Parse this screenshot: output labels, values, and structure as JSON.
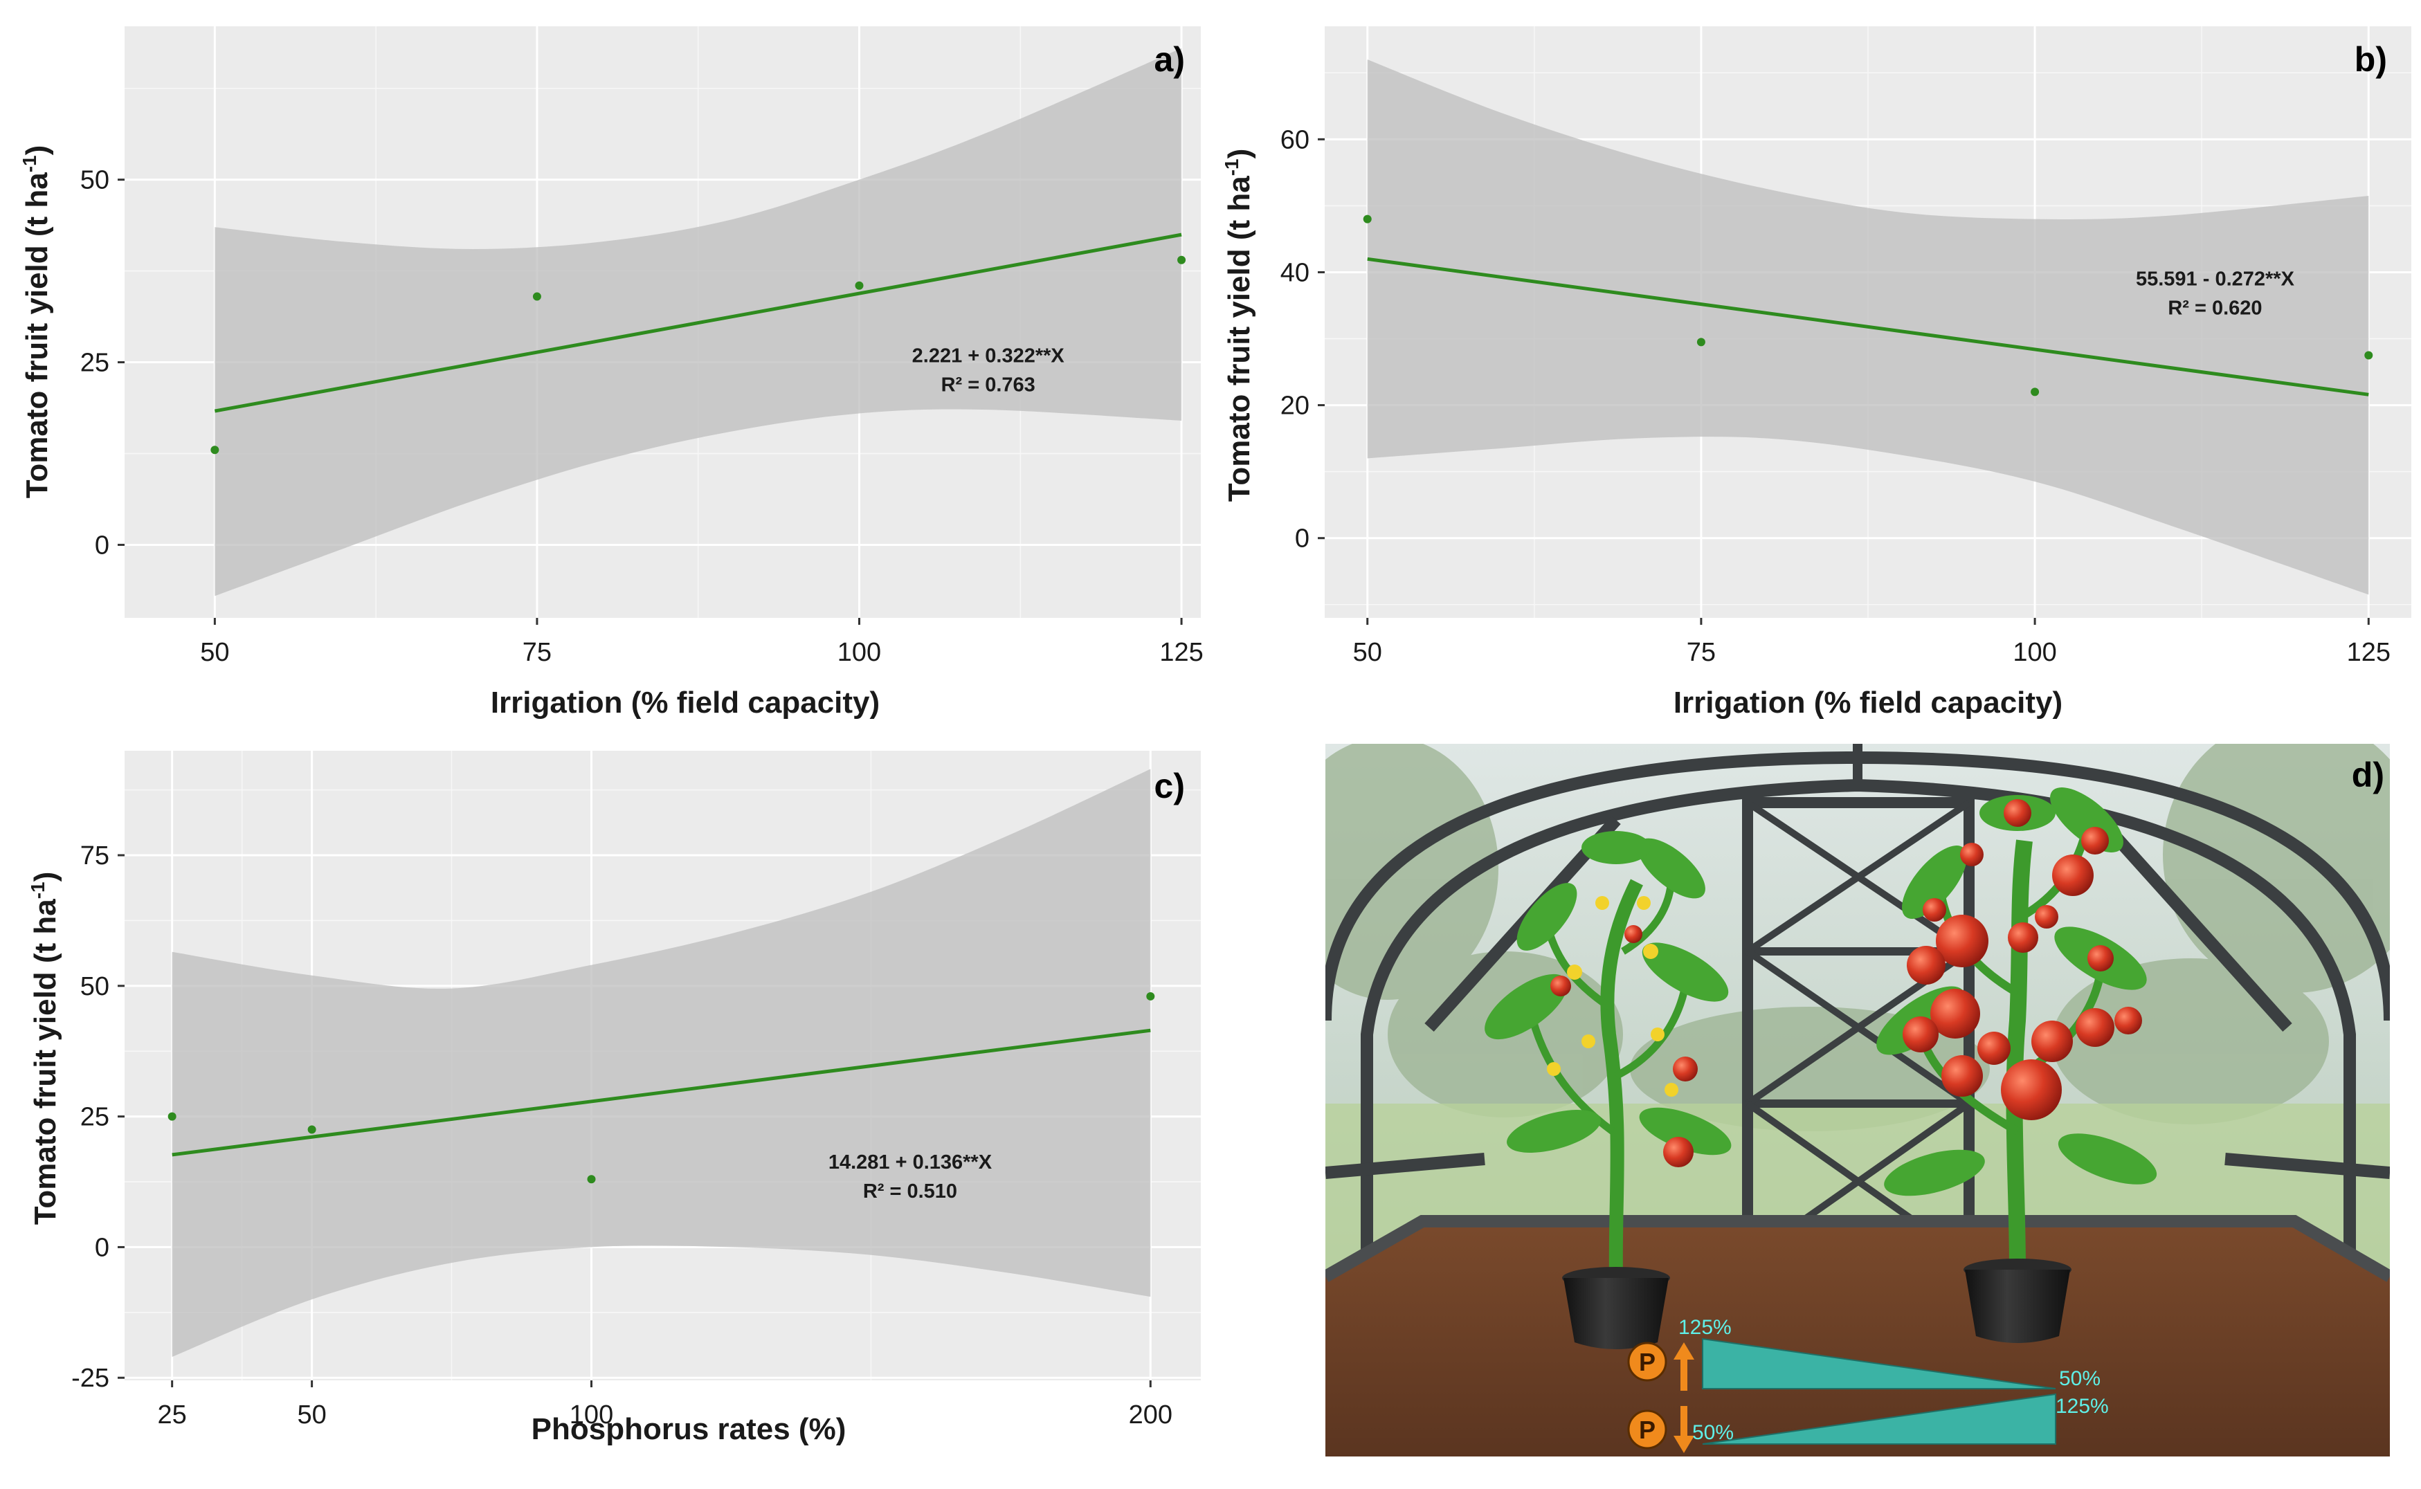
{
  "chart_data": [
    {
      "type": "scatter",
      "panel_label": "a)",
      "xlabel": "Irrigation (% field capacity)",
      "ylabel": "Tomato fruit yield (t ha-1)",
      "ylabel_main": "Tomato fruit yield (t ha",
      "ylabel_sup": "-1",
      "ylabel_close": ")",
      "xlim": [
        43,
        126.5
      ],
      "ylim": [
        -10,
        71
      ],
      "x_ticks": [
        50,
        75,
        100,
        125
      ],
      "x_tick_labels": [
        "50",
        "75",
        "100",
        "125"
      ],
      "y_ticks": [
        0,
        25,
        50
      ],
      "y_tick_labels": [
        "0",
        "25",
        "50"
      ],
      "points": [
        {
          "x": 50,
          "y": 13
        },
        {
          "x": 75,
          "y": 34
        },
        {
          "x": 100,
          "y": 35.5
        },
        {
          "x": 125,
          "y": 39
        }
      ],
      "fit": {
        "intercept": 2.221,
        "slope": 0.322
      },
      "ci_upper": [
        [
          50,
          43.5
        ],
        [
          60,
          41.5
        ],
        [
          70,
          40.5
        ],
        [
          80,
          41.5
        ],
        [
          90,
          44.5
        ],
        [
          100,
          50
        ],
        [
          110,
          56.5
        ],
        [
          125,
          68
        ]
      ],
      "ci_lower": [
        [
          50,
          -7
        ],
        [
          60,
          -0.5
        ],
        [
          70,
          6
        ],
        [
          80,
          11.5
        ],
        [
          90,
          15.5
        ],
        [
          100,
          18
        ],
        [
          110,
          18.5
        ],
        [
          125,
          17
        ]
      ],
      "equation": "2.221 + 0.322**X",
      "r2": "R² = 0.763",
      "eq_pos": [
        110,
        25
      ]
    },
    {
      "type": "scatter",
      "panel_label": "b)",
      "xlabel": "Irrigation (% field capacity)",
      "ylabel": "Tomato fruit yield (t ha-1)",
      "ylabel_main": "Tomato fruit yield (t ha",
      "ylabel_sup": "-1",
      "ylabel_close": ")",
      "xlim": [
        46.8,
        128.2
      ],
      "ylim": [
        -12,
        77
      ],
      "x_ticks": [
        50,
        75,
        100,
        125
      ],
      "x_tick_labels": [
        "50",
        "75",
        "100",
        "125"
      ],
      "y_ticks": [
        0,
        20,
        40,
        60
      ],
      "y_tick_labels": [
        "0",
        "20",
        "40",
        "60"
      ],
      "points": [
        {
          "x": 50,
          "y": 48
        },
        {
          "x": 75,
          "y": 29.5
        },
        {
          "x": 100,
          "y": 22
        },
        {
          "x": 125,
          "y": 27.5
        }
      ],
      "fit": {
        "intercept": 55.591,
        "slope": -0.272
      },
      "ci_upper": [
        [
          50,
          72
        ],
        [
          60,
          64
        ],
        [
          70,
          57.5
        ],
        [
          80,
          52.5
        ],
        [
          90,
          49
        ],
        [
          100,
          48
        ],
        [
          110,
          48.5
        ],
        [
          125,
          51.5
        ]
      ],
      "ci_lower": [
        [
          50,
          12
        ],
        [
          60,
          13.5
        ],
        [
          70,
          15
        ],
        [
          80,
          15
        ],
        [
          90,
          12.5
        ],
        [
          100,
          8.5
        ],
        [
          110,
          2
        ],
        [
          125,
          -8.5
        ]
      ],
      "equation": "55.591 - 0.272**X",
      "r2": "R² = 0.620",
      "eq_pos": [
        113.5,
        38
      ]
    },
    {
      "type": "scatter",
      "panel_label": "c)",
      "xlabel": "Phosphorus rates (%)",
      "ylabel": "Tomato fruit yield (t ha-1)",
      "ylabel_main": "Tomato fruit yield (t ha",
      "ylabel_sup": "-1",
      "ylabel_close": ")",
      "xlim": [
        16.5,
        209
      ],
      "ylim": [
        -25.5,
        95
      ],
      "x_ticks": [
        25,
        50,
        100,
        200
      ],
      "x_tick_labels": [
        "25",
        "50",
        "100",
        "200"
      ],
      "y_ticks": [
        -25,
        0,
        25,
        50,
        75
      ],
      "y_tick_labels": [
        "-25",
        "0",
        "25",
        "50",
        "75"
      ],
      "points": [
        {
          "x": 25,
          "y": 25
        },
        {
          "x": 50,
          "y": 22.5
        },
        {
          "x": 100,
          "y": 13
        },
        {
          "x": 200,
          "y": 48
        }
      ],
      "fit": {
        "intercept": 14.281,
        "slope": 0.136
      },
      "ci_upper": [
        [
          25,
          56.5
        ],
        [
          50,
          52
        ],
        [
          75,
          49.5
        ],
        [
          100,
          54
        ],
        [
          125,
          60
        ],
        [
          150,
          68
        ],
        [
          175,
          79
        ],
        [
          200,
          91.5
        ]
      ],
      "ci_lower": [
        [
          25,
          -21
        ],
        [
          50,
          -10
        ],
        [
          75,
          -3
        ],
        [
          100,
          0
        ],
        [
          125,
          0
        ],
        [
          150,
          -1.5
        ],
        [
          175,
          -5
        ],
        [
          200,
          -9.5
        ]
      ],
      "equation": "14.281 + 0.136**X",
      "r2": "R² = 0.510",
      "eq_pos": [
        157,
        15
      ]
    }
  ],
  "illustration": {
    "panel_label": "d)",
    "nutrient_symbol": "P",
    "top_bar_left_label": "125%",
    "top_bar_right_label": "50%",
    "bottom_bar_left_label": "50%",
    "bottom_bar_right_label": "125%",
    "colors": {
      "sky": "#c9d6d3",
      "frame": "#3a3d3f",
      "soil": "#6b4027",
      "leaf": "#3d9a2c",
      "tomato": "#d83a23",
      "flower": "#f2d22b",
      "bar": "#3bb3a5",
      "symbol": "#f08a1c"
    }
  }
}
